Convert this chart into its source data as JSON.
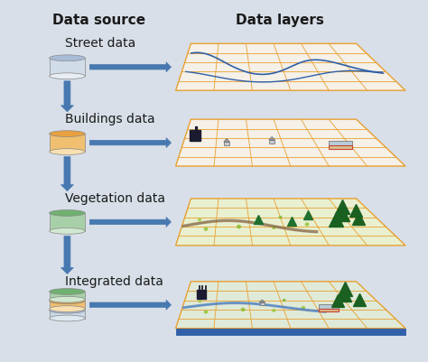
{
  "title_left": "Data source",
  "title_right": "Data layers",
  "layers": [
    {
      "label": "Street data",
      "cyl_top": "#a8bcd8",
      "cyl_mid": "#d0dce8",
      "cyl_bot": "#e8eef4",
      "panel_fill": "#f5f0e8",
      "grid_color": "#e8a030",
      "type": "street"
    },
    {
      "label": "Buildings data",
      "cyl_top": "#e8a040",
      "cyl_mid": "#f0c070",
      "cyl_bot": "#f8e0b0",
      "panel_fill": "#f5f0e8",
      "grid_color": "#e8a030",
      "type": "buildings"
    },
    {
      "label": "Vegetation data",
      "cyl_top": "#70b070",
      "cyl_mid": "#a8d0a8",
      "cyl_bot": "#d0e8d0",
      "panel_fill": "#c8e090",
      "grid_color": "#e8a030",
      "type": "vegetation"
    },
    {
      "label": "Integrated data",
      "cyl_top": "#a8bcd8",
      "cyl_mid": "#d0dce8",
      "cyl_bot": "#70b070",
      "panel_fill": "#c8e090",
      "grid_color": "#e8a030",
      "type": "integrated"
    }
  ],
  "bg_color": "#d8dfe8",
  "arrow_color": "#4878b0",
  "text_color": "#1a1a1a",
  "title_fontsize": 11,
  "label_fontsize": 10
}
